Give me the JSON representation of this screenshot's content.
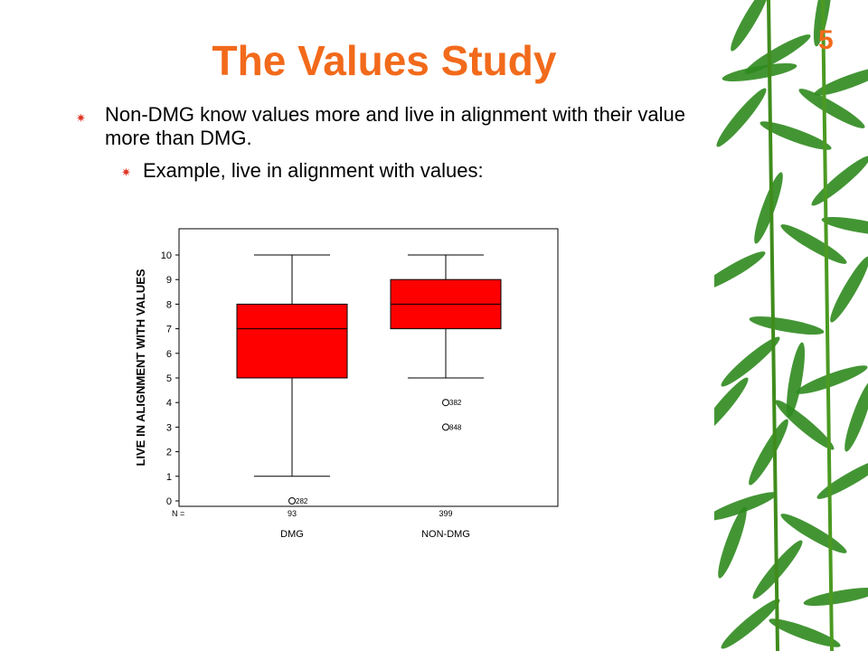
{
  "slide": {
    "title": "The Values Study",
    "number": "5",
    "bullets": [
      "Non-DMG know values more and live in alignment with their value more than DMG.",
      "Example, live in alignment with values:"
    ],
    "bullet_marker_icon": "star-burst-icon",
    "colors": {
      "title": "#f26a1b",
      "box_fill": "#ff0000",
      "bullet_marker": "#e0301e",
      "bamboo": "#2f8a1e"
    }
  },
  "chart_data": {
    "type": "boxplot",
    "ylabel": "LIVE IN ALIGNMENT WITH VALUES",
    "ylim": [
      0,
      10
    ],
    "yticks": [
      "0",
      "1",
      "2",
      "3",
      "4",
      "5",
      "6",
      "7",
      "8",
      "9",
      "10"
    ],
    "n_label": "N =",
    "categories": [
      "DMG",
      "NON-DMG"
    ],
    "n": [
      "93",
      "399"
    ],
    "boxes": [
      {
        "name": "DMG",
        "whisker_low": 1,
        "q1": 5,
        "median": 7,
        "q3": 8,
        "whisker_high": 10,
        "outliers": [
          {
            "value": 0,
            "label": "282"
          }
        ]
      },
      {
        "name": "NON-DMG",
        "whisker_low": 5,
        "q1": 7,
        "median": 8,
        "q3": 9,
        "whisker_high": 10,
        "outliers": [
          {
            "value": 4,
            "label": "382"
          },
          {
            "value": 3,
            "label": "848"
          }
        ]
      }
    ],
    "grid": false
  }
}
